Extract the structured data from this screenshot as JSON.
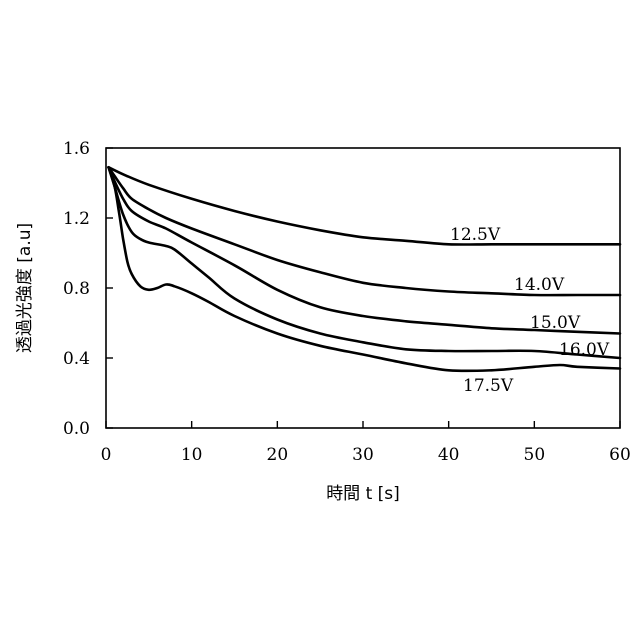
{
  "chart_data": {
    "type": "line",
    "xlabel": "時間 t [s]",
    "ylabel": "透過光強度 [a.u]",
    "xlim": [
      0,
      60
    ],
    "ylim": [
      0.0,
      1.6
    ],
    "x_ticks": [
      "0",
      "10",
      "20",
      "30",
      "40",
      "50",
      "60"
    ],
    "x_tick_values": [
      0,
      10,
      20,
      30,
      40,
      50,
      60
    ],
    "y_ticks": [
      "0.0",
      "0.4",
      "0.8",
      "1.2",
      "1.6"
    ],
    "y_tick_values": [
      0.0,
      0.4,
      0.8,
      1.2,
      1.6
    ],
    "grid": false,
    "legend": "none",
    "series": [
      {
        "name": "12.5V",
        "x": [
          0.3,
          2,
          5,
          10,
          15,
          20,
          25,
          30,
          35,
          40,
          45,
          50,
          55,
          60
        ],
        "y": [
          1.49,
          1.45,
          1.39,
          1.31,
          1.24,
          1.18,
          1.13,
          1.09,
          1.07,
          1.05,
          1.05,
          1.05,
          1.05,
          1.05
        ]
      },
      {
        "name": "14.0V",
        "x": [
          0.3,
          1,
          2,
          3,
          5,
          7,
          10,
          15,
          20,
          25,
          30,
          35,
          40,
          45,
          50,
          55,
          60
        ],
        "y": [
          1.49,
          1.44,
          1.37,
          1.31,
          1.25,
          1.2,
          1.14,
          1.05,
          0.96,
          0.89,
          0.83,
          0.8,
          0.78,
          0.77,
          0.76,
          0.76,
          0.76
        ]
      },
      {
        "name": "15.0V",
        "x": [
          0.3,
          1,
          2,
          3,
          5,
          7,
          10,
          15,
          20,
          25,
          30,
          35,
          40,
          45,
          50,
          55,
          60
        ],
        "y": [
          1.49,
          1.41,
          1.31,
          1.24,
          1.18,
          1.14,
          1.06,
          0.93,
          0.79,
          0.69,
          0.64,
          0.61,
          0.59,
          0.57,
          0.56,
          0.55,
          0.54
        ]
      },
      {
        "name": "16.0V",
        "x": [
          0.3,
          1,
          2,
          3,
          4,
          5,
          7,
          8,
          10,
          12,
          15,
          20,
          25,
          30,
          35,
          40,
          45,
          50,
          55,
          60
        ],
        "y": [
          1.49,
          1.38,
          1.22,
          1.12,
          1.08,
          1.06,
          1.04,
          1.02,
          0.94,
          0.86,
          0.74,
          0.62,
          0.54,
          0.49,
          0.45,
          0.44,
          0.44,
          0.44,
          0.42,
          0.4
        ]
      },
      {
        "name": "17.5V",
        "x": [
          0.3,
          1,
          1.5,
          2,
          2.5,
          3,
          4,
          5,
          6,
          7,
          8,
          10,
          12,
          15,
          20,
          25,
          30,
          35,
          40,
          45,
          50,
          53,
          55,
          60
        ],
        "y": [
          1.49,
          1.38,
          1.24,
          1.08,
          0.95,
          0.88,
          0.81,
          0.79,
          0.8,
          0.82,
          0.81,
          0.77,
          0.72,
          0.64,
          0.54,
          0.47,
          0.42,
          0.37,
          0.33,
          0.33,
          0.35,
          0.36,
          0.35,
          0.34
        ]
      }
    ]
  }
}
